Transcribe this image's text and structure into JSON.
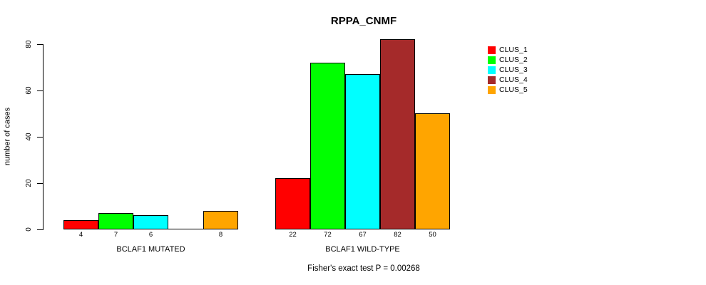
{
  "chart_data": {
    "type": "bar",
    "title": "RPPA_CNMF",
    "ylabel": "number of cases",
    "ylim": [
      0,
      82
    ],
    "yticks": [
      0,
      20,
      40,
      60,
      80
    ],
    "grid": false,
    "legend_position": "right",
    "bar_value_labels_shown": true,
    "zero_value_bars_drawn_as_baseline": true,
    "categories": [
      "BCLAF1 MUTATED",
      "BCLAF1 WILD-TYPE"
    ],
    "series": [
      {
        "name": "CLUS_1",
        "color": "#FF0000",
        "values": [
          4,
          22
        ]
      },
      {
        "name": "CLUS_2",
        "color": "#00FF00",
        "values": [
          7,
          72
        ]
      },
      {
        "name": "CLUS_3",
        "color": "#00FFFF",
        "values": [
          6,
          67
        ]
      },
      {
        "name": "CLUS_4",
        "color": "#A52A2A",
        "values": [
          0,
          82
        ]
      },
      {
        "name": "CLUS_5",
        "color": "#FFA500",
        "values": [
          8,
          50
        ]
      }
    ],
    "annotations": [
      "Fisher's exact test P = 0.00268"
    ],
    "colors": {
      "background": "#FFFFFF",
      "axis": "#000000",
      "bar_border": "#000000",
      "text": "#000000"
    }
  }
}
